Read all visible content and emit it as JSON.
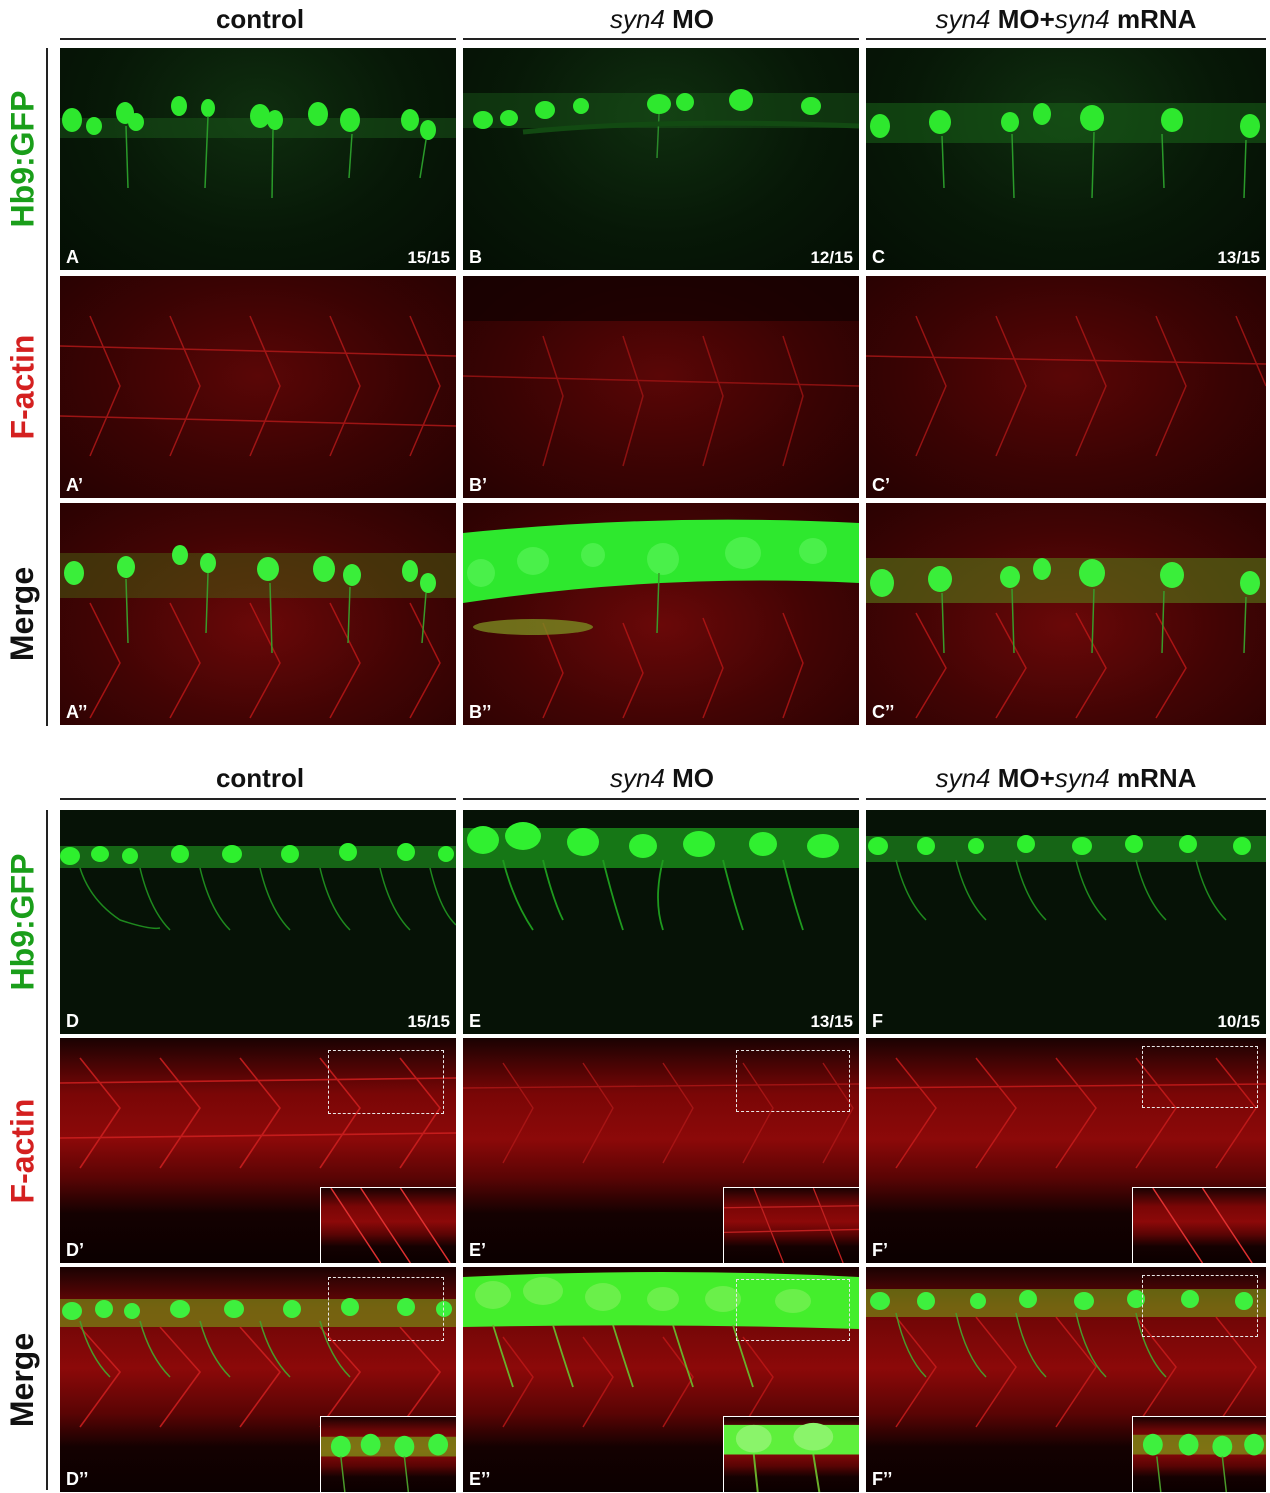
{
  "top": {
    "columns": [
      {
        "title_plain": "control"
      },
      {
        "title_it": "syn4",
        "title_rest": " MO"
      },
      {
        "title_it": "syn4",
        "title_mid": " MO+",
        "title_it2": "syn4",
        "title_rest": " mRNA"
      }
    ],
    "rows": [
      "Hb9:GFP",
      "F-actin",
      "Merge"
    ],
    "panels": [
      {
        "label": "A",
        "fraction": "15/15"
      },
      {
        "label": "B",
        "fraction": "12/15"
      },
      {
        "label": "C",
        "fraction": "13/15"
      },
      {
        "label": "A’"
      },
      {
        "label": "B’"
      },
      {
        "label": "C’"
      },
      {
        "label": "A’’"
      },
      {
        "label": "B’’"
      },
      {
        "label": "C’’"
      }
    ]
  },
  "bottom": {
    "columns": [
      {
        "title_plain": "control"
      },
      {
        "title_it": "syn4",
        "title_rest": " MO"
      },
      {
        "title_it": "syn4",
        "title_mid": " MO+",
        "title_it2": "syn4",
        "title_rest": " mRNA"
      }
    ],
    "rows": [
      "Hb9:GFP",
      "F-actin",
      "Merge"
    ],
    "panels": [
      {
        "label": "D",
        "fraction": "15/15"
      },
      {
        "label": "E",
        "fraction": "13/15"
      },
      {
        "label": "F",
        "fraction": "10/15"
      },
      {
        "label": "D’"
      },
      {
        "label": "E’"
      },
      {
        "label": "F’"
      },
      {
        "label": "D’’"
      },
      {
        "label": "E’’"
      },
      {
        "label": "F’’"
      }
    ]
  },
  "colors": {
    "gfp": "#22dd22",
    "actin": "#dd1111",
    "row_label_gfp": "#1a9e1a",
    "row_label_actin": "#d42020",
    "row_label_merge": "#111111"
  }
}
